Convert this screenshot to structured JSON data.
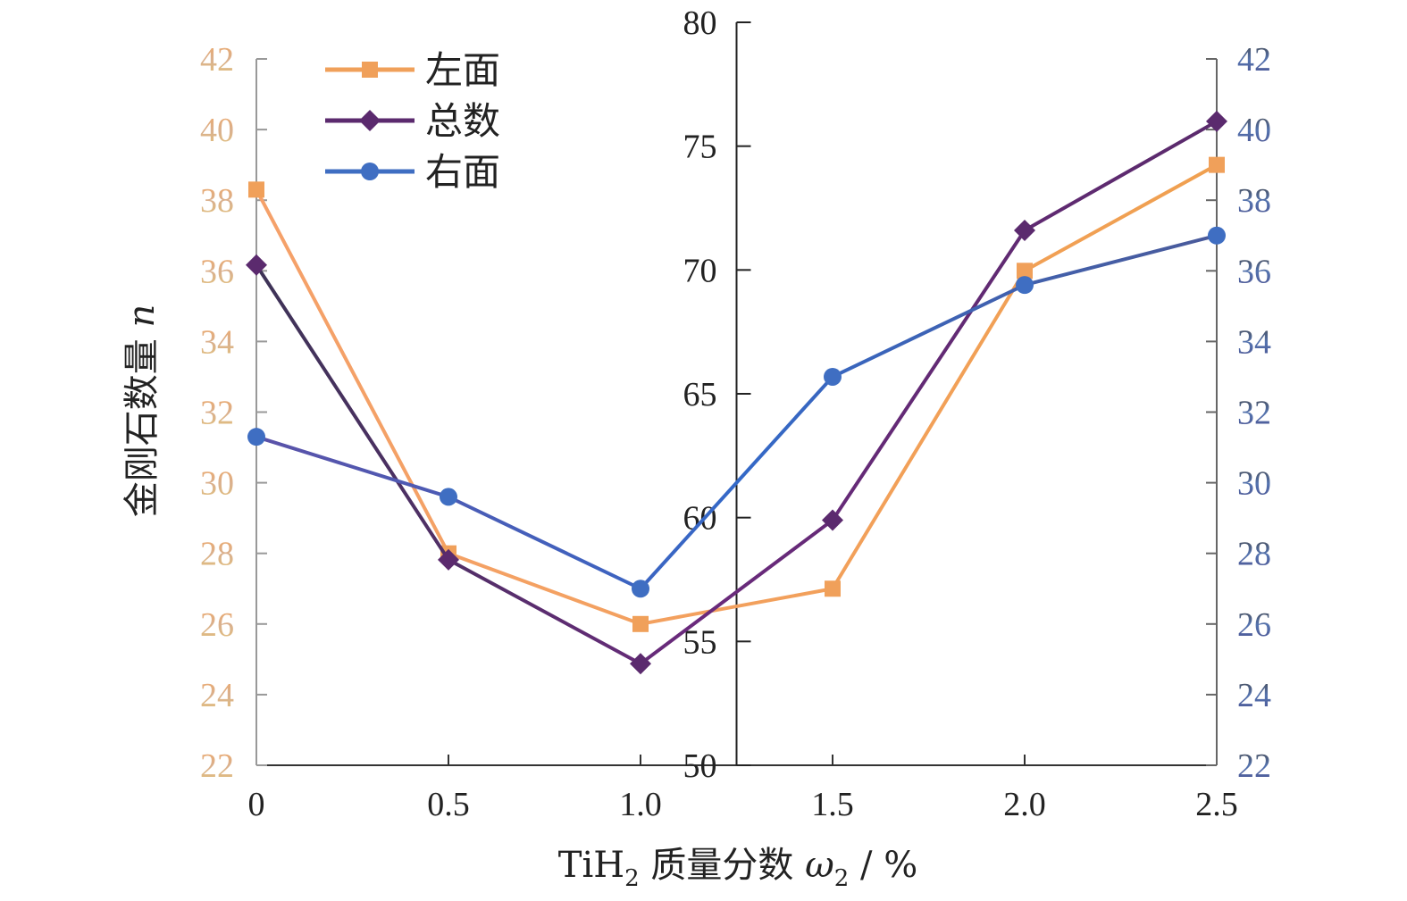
{
  "chart_data": {
    "type": "line",
    "x": [
      0,
      0.5,
      1.0,
      1.5,
      2.0,
      2.5
    ],
    "x_tick_labels": [
      "0",
      "0.5",
      "1.0",
      "1.5",
      "2.0",
      "2.5"
    ],
    "xlim": [
      0,
      2.5
    ],
    "xlabel": {
      "prefix": "TiH",
      "sub": "2",
      "mid": " 质量分数 ",
      "omega": "ω",
      "omega_sub": "2",
      "unit": " / %"
    },
    "ylabel": {
      "text": "金刚石数量 ",
      "var": "n"
    },
    "y_left": {
      "ylim": [
        22,
        42
      ],
      "ticks": [
        "22",
        "24",
        "26",
        "28",
        "30",
        "32",
        "34",
        "36",
        "38",
        "40",
        "42"
      ],
      "color": "#f0a868"
    },
    "y_middle": {
      "ylim": [
        50,
        80
      ],
      "ticks": [
        "50",
        "55",
        "60",
        "65",
        "70",
        "75",
        "80"
      ],
      "position_x": 1.25,
      "color": "#222222"
    },
    "y_right": {
      "ylim": [
        22,
        42
      ],
      "ticks": [
        "22",
        "24",
        "26",
        "28",
        "30",
        "32",
        "34",
        "36",
        "38",
        "40",
        "42"
      ],
      "color": "#4a4e8c"
    },
    "series": [
      {
        "name": "左面",
        "axis": "left",
        "marker": "square",
        "color": "#f0a05a",
        "values": [
          38.3,
          28.0,
          26.0,
          27.0,
          36.0,
          39.0
        ]
      },
      {
        "name": "总数",
        "axis": "middle",
        "marker": "diamond",
        "color": "#5b2a6e",
        "values": [
          70.2,
          58.3,
          54.1,
          59.9,
          71.6,
          76.0
        ]
      },
      {
        "name": "右面",
        "axis": "right",
        "marker": "circle",
        "color": "#3f6ec2",
        "values": [
          31.3,
          29.6,
          27.0,
          33.0,
          35.6,
          37.0
        ]
      }
    ],
    "legend": {
      "position": "top-left"
    },
    "grid": false
  }
}
